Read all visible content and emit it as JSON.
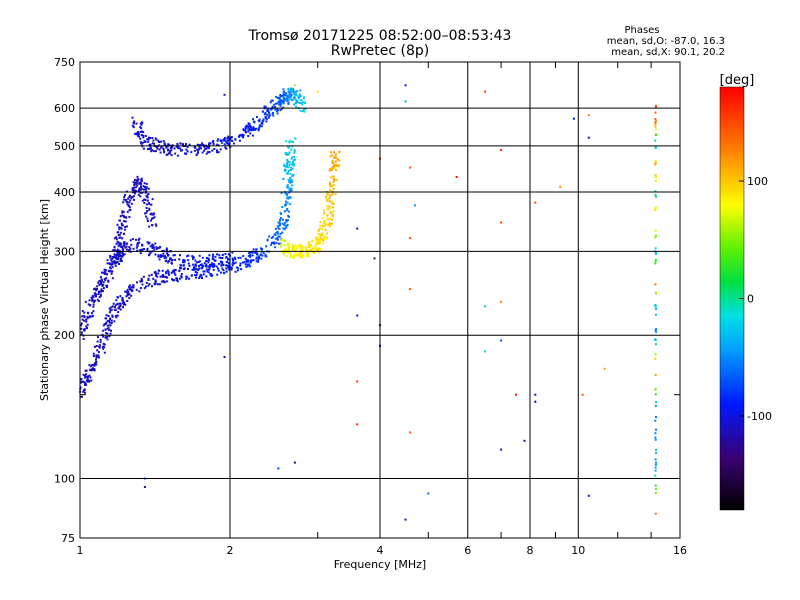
{
  "chart_data": {
    "type": "scatter",
    "title": "Tromsø 20171225 08:52:00–08:53:43",
    "subtitle": "RwPretec (8p)",
    "xlabel": "Frequency [MHz]",
    "ylabel": "Stationary phase Virtual Height [km]",
    "x_scale": "log",
    "y_scale": "log",
    "xlim": [
      1,
      16
    ],
    "ylim": [
      75,
      750
    ],
    "x_ticks": [
      1,
      2,
      4,
      6,
      8,
      10,
      16
    ],
    "x_tick_labels": [
      "1",
      "2",
      "4",
      "6",
      "8",
      "10",
      "16"
    ],
    "y_ticks": [
      75,
      100,
      200,
      300,
      400,
      500,
      600,
      750
    ],
    "y_tick_labels": [
      "75",
      "100",
      "200",
      "300",
      "400",
      "500",
      "600",
      "750"
    ],
    "x_minor_ticks": [
      3,
      5,
      7,
      9,
      12,
      14
    ],
    "y_minor_ticks": [
      150
    ],
    "grid": true,
    "info": {
      "heading": "Phases",
      "line1": "mean, sd,O: -87.0, 16.3",
      "line2": "mean, sd,X:  90.1, 20.2"
    },
    "colorbar": {
      "unit": "[deg]",
      "range": [
        -180,
        180
      ],
      "ticks": [
        100,
        0,
        -100
      ],
      "tick_labels": [
        "100",
        "0",
        "-100"
      ]
    },
    "traces": [
      {
        "name_hint": "",
        "points": [
          [
            1.0,
            150,
            -110
          ],
          [
            1.05,
            165,
            -110
          ],
          [
            1.1,
            190,
            -112
          ],
          [
            1.15,
            215,
            -112
          ],
          [
            1.2,
            235,
            -110
          ],
          [
            1.3,
            255,
            -108
          ],
          [
            1.45,
            265,
            -105
          ],
          [
            1.6,
            268,
            -100
          ],
          [
            1.8,
            272,
            -95
          ],
          [
            2.0,
            280,
            -90
          ],
          [
            2.2,
            290,
            -85
          ],
          [
            2.4,
            305,
            -75
          ],
          [
            2.55,
            340,
            -65
          ],
          [
            2.6,
            400,
            -50
          ],
          [
            2.63,
            450,
            -30
          ],
          [
            2.66,
            520,
            -20
          ]
        ]
      },
      {
        "name_hint": "",
        "points": [
          [
            1.0,
            200,
            -110
          ],
          [
            1.05,
            230,
            -110
          ],
          [
            1.1,
            255,
            -112
          ],
          [
            1.15,
            280,
            -110
          ],
          [
            1.2,
            300,
            -110
          ],
          [
            1.3,
            310,
            -108
          ],
          [
            1.45,
            300,
            -105
          ],
          [
            1.6,
            285,
            -100
          ],
          [
            1.8,
            285,
            -95
          ],
          [
            2.0,
            290,
            -92
          ]
        ]
      },
      {
        "name_hint": "",
        "points": [
          [
            1.3,
            560,
            -110
          ],
          [
            1.35,
            510,
            -108
          ],
          [
            1.45,
            495,
            -108
          ],
          [
            1.6,
            490,
            -105
          ],
          [
            1.8,
            495,
            -100
          ],
          [
            2.0,
            510,
            -95
          ],
          [
            2.2,
            540,
            -90
          ],
          [
            2.35,
            575,
            -85
          ],
          [
            2.5,
            615,
            -75
          ],
          [
            2.6,
            640,
            -60
          ],
          [
            2.7,
            640,
            -40
          ],
          [
            2.8,
            600,
            -20
          ]
        ]
      },
      {
        "name_hint": "",
        "points": [
          [
            1.15,
            270,
            -110
          ],
          [
            1.2,
            320,
            -110
          ],
          [
            1.25,
            380,
            -112
          ],
          [
            1.3,
            420,
            -110
          ],
          [
            1.35,
            400,
            -108
          ],
          [
            1.4,
            340,
            -105
          ]
        ]
      },
      {
        "name_hint": "",
        "points": [
          [
            2.55,
            310,
            70
          ],
          [
            2.65,
            300,
            80
          ],
          [
            2.8,
            300,
            85
          ],
          [
            2.95,
            305,
            90
          ],
          [
            3.05,
            320,
            95
          ],
          [
            3.15,
            360,
            100
          ],
          [
            3.2,
            420,
            110
          ],
          [
            3.25,
            480,
            115
          ]
        ]
      },
      {
        "name_hint": "",
        "points": [
          [
            14.3,
            620,
            150
          ],
          [
            14.3,
            560,
            140
          ],
          [
            14.3,
            500,
            -40
          ],
          [
            14.3,
            450,
            150
          ],
          [
            14.3,
            400,
            -20
          ],
          [
            14.3,
            350,
            160
          ],
          [
            14.3,
            300,
            -40
          ],
          [
            14.3,
            260,
            150
          ],
          [
            14.3,
            230,
            -30
          ],
          [
            14.3,
            200,
            -50
          ],
          [
            14.3,
            170,
            150
          ],
          [
            14.3,
            140,
            -60
          ],
          [
            14.3,
            120,
            -50
          ],
          [
            14.3,
            105,
            -40
          ],
          [
            14.3,
            82,
            150
          ]
        ]
      }
    ],
    "scattered_points": [
      [
        1.95,
        640,
        -100
      ],
      [
        2.7,
        670,
        60
      ],
      [
        3.0,
        650,
        90
      ],
      [
        4.5,
        670,
        -90
      ],
      [
        4.5,
        620,
        -40
      ],
      [
        6.5,
        650,
        160
      ],
      [
        7.0,
        490,
        160
      ],
      [
        4.0,
        470,
        170
      ],
      [
        4.6,
        450,
        150
      ],
      [
        5.7,
        430,
        175
      ],
      [
        4.7,
        375,
        -50
      ],
      [
        7.0,
        345,
        150
      ],
      [
        8.2,
        380,
        150
      ],
      [
        9.2,
        410,
        130
      ],
      [
        10.5,
        520,
        -110
      ],
      [
        10.5,
        580,
        130
      ],
      [
        9.8,
        570,
        -90
      ],
      [
        3.6,
        335,
        -120
      ],
      [
        3.9,
        290,
        -130
      ],
      [
        4.0,
        210,
        -110
      ],
      [
        4.0,
        190,
        -130
      ],
      [
        4.6,
        250,
        150
      ],
      [
        4.6,
        320,
        150
      ],
      [
        6.5,
        230,
        -30
      ],
      [
        7.0,
        235,
        130
      ],
      [
        6.5,
        185,
        -20
      ],
      [
        7.0,
        195,
        -70
      ],
      [
        3.6,
        220,
        -110
      ],
      [
        3.6,
        160,
        160
      ],
      [
        3.6,
        130,
        160
      ],
      [
        4.6,
        125,
        150
      ],
      [
        7.5,
        150,
        175
      ],
      [
        8.2,
        150,
        -120
      ],
      [
        8.2,
        145,
        -150
      ],
      [
        7.8,
        120,
        -110
      ],
      [
        7.0,
        115,
        -130
      ],
      [
        10.2,
        150,
        150
      ],
      [
        11.3,
        170,
        120
      ],
      [
        5.0,
        93,
        -60
      ],
      [
        4.5,
        82,
        -110
      ],
      [
        2.5,
        105,
        -80
      ],
      [
        2.7,
        108,
        -140
      ],
      [
        1.35,
        100,
        -70
      ],
      [
        1.35,
        96,
        -120
      ],
      [
        1.95,
        180,
        -120
      ],
      [
        10.5,
        92,
        -100
      ]
    ]
  }
}
